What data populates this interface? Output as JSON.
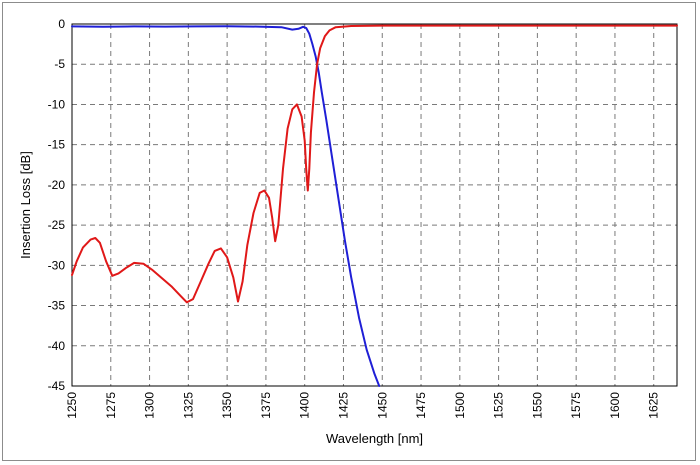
{
  "chart_data": {
    "type": "line",
    "xlabel": "Wavelength [nm]",
    "ylabel": "Insertion Loss [dB]",
    "xlim": [
      1250,
      1640
    ],
    "ylim": [
      -45,
      0
    ],
    "x_ticks": [
      1250,
      1275,
      1300,
      1325,
      1350,
      1375,
      1400,
      1425,
      1450,
      1475,
      1500,
      1525,
      1550,
      1575,
      1600,
      1625
    ],
    "y_ticks": [
      0,
      -5,
      -10,
      -15,
      -20,
      -25,
      -30,
      -35,
      -40,
      -45
    ],
    "grid": true,
    "grid_style": "dashed",
    "legend": "none",
    "series": [
      {
        "color": "#1f1fd6",
        "points": [
          [
            1250,
            -0.3
          ],
          [
            1270,
            -0.35
          ],
          [
            1290,
            -0.3
          ],
          [
            1310,
            -0.32
          ],
          [
            1330,
            -0.3
          ],
          [
            1350,
            -0.28
          ],
          [
            1370,
            -0.32
          ],
          [
            1385,
            -0.4
          ],
          [
            1392,
            -0.7
          ],
          [
            1396,
            -0.6
          ],
          [
            1399,
            -0.35
          ],
          [
            1401,
            -0.5
          ],
          [
            1403,
            -1.2
          ],
          [
            1405,
            -2.5
          ],
          [
            1407,
            -4.0
          ],
          [
            1409,
            -6.0
          ],
          [
            1411,
            -8.5
          ],
          [
            1414,
            -12.0
          ],
          [
            1418,
            -17.0
          ],
          [
            1422,
            -22.0
          ],
          [
            1426,
            -27.0
          ],
          [
            1430,
            -31.5
          ],
          [
            1435,
            -36.5
          ],
          [
            1440,
            -40.5
          ],
          [
            1445,
            -43.5
          ],
          [
            1448,
            -45.0
          ]
        ]
      },
      {
        "color": "#e01818",
        "points": [
          [
            1250,
            -31.2
          ],
          [
            1253,
            -29.5
          ],
          [
            1257,
            -27.8
          ],
          [
            1262,
            -26.8
          ],
          [
            1265,
            -26.6
          ],
          [
            1268,
            -27.2
          ],
          [
            1272,
            -29.5
          ],
          [
            1276,
            -31.3
          ],
          [
            1280,
            -31.0
          ],
          [
            1285,
            -30.3
          ],
          [
            1290,
            -29.7
          ],
          [
            1296,
            -29.8
          ],
          [
            1302,
            -30.6
          ],
          [
            1308,
            -31.6
          ],
          [
            1314,
            -32.6
          ],
          [
            1320,
            -33.8
          ],
          [
            1324,
            -34.6
          ],
          [
            1328,
            -34.2
          ],
          [
            1333,
            -32.0
          ],
          [
            1338,
            -29.8
          ],
          [
            1342,
            -28.2
          ],
          [
            1346,
            -27.9
          ],
          [
            1350,
            -29.0
          ],
          [
            1354,
            -31.5
          ],
          [
            1357,
            -34.5
          ],
          [
            1360,
            -32.0
          ],
          [
            1363,
            -27.5
          ],
          [
            1367,
            -23.5
          ],
          [
            1371,
            -21.0
          ],
          [
            1374,
            -20.7
          ],
          [
            1377,
            -21.6
          ],
          [
            1379,
            -24.0
          ],
          [
            1381,
            -27.0
          ],
          [
            1383,
            -25.0
          ],
          [
            1386,
            -18.0
          ],
          [
            1389,
            -13.0
          ],
          [
            1392,
            -10.6
          ],
          [
            1395,
            -10.0
          ],
          [
            1398,
            -11.5
          ],
          [
            1400,
            -14.5
          ],
          [
            1401,
            -18.0
          ],
          [
            1402,
            -20.7
          ],
          [
            1403,
            -18.0
          ],
          [
            1404,
            -13.5
          ],
          [
            1406,
            -8.5
          ],
          [
            1408,
            -5.0
          ],
          [
            1410,
            -3.0
          ],
          [
            1413,
            -1.5
          ],
          [
            1416,
            -0.8
          ],
          [
            1420,
            -0.4
          ],
          [
            1430,
            -0.25
          ],
          [
            1450,
            -0.2
          ],
          [
            1500,
            -0.2
          ],
          [
            1550,
            -0.2
          ],
          [
            1600,
            -0.2
          ],
          [
            1640,
            -0.2
          ]
        ]
      }
    ]
  }
}
